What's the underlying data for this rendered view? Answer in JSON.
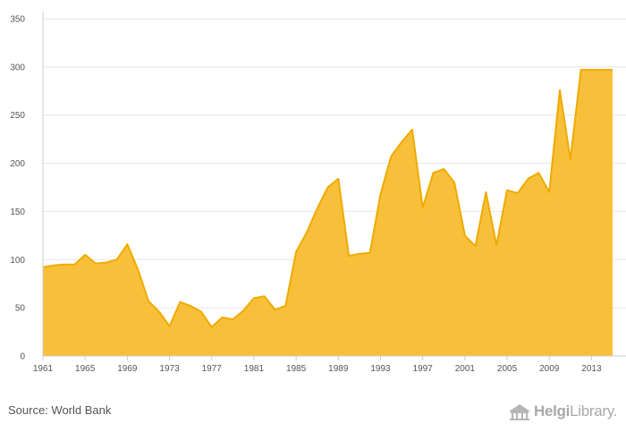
{
  "chart_data": {
    "type": "area",
    "title": "",
    "xlabel": "",
    "ylabel": "",
    "x": [
      1961,
      1962,
      1963,
      1964,
      1965,
      1966,
      1967,
      1968,
      1969,
      1970,
      1971,
      1972,
      1973,
      1974,
      1975,
      1976,
      1977,
      1978,
      1979,
      1980,
      1981,
      1982,
      1983,
      1984,
      1985,
      1986,
      1987,
      1988,
      1989,
      1990,
      1991,
      1992,
      1993,
      1994,
      1995,
      1996,
      1997,
      1998,
      1999,
      2000,
      2001,
      2002,
      2003,
      2004,
      2005,
      2006,
      2007,
      2008,
      2009,
      2010,
      2011,
      2012,
      2013,
      2014,
      2015
    ],
    "values": [
      92,
      94,
      95,
      95,
      105,
      96,
      97,
      100,
      116,
      90,
      57,
      46,
      31,
      56,
      52,
      46,
      30,
      40,
      38,
      47,
      60,
      62,
      48,
      52,
      108,
      128,
      153,
      175,
      184,
      104,
      106,
      107,
      168,
      207,
      222,
      235,
      154,
      190,
      194,
      180,
      125,
      114,
      170,
      115,
      172,
      169,
      184,
      190,
      170,
      276,
      204,
      297,
      297,
      297,
      297
    ],
    "xlim": [
      1961,
      2015
    ],
    "ylim": [
      0,
      350
    ],
    "x_ticks": [
      "1961",
      "1965",
      "1969",
      "1973",
      "1977",
      "1981",
      "1985",
      "1989",
      "1993",
      "1997",
      "2001",
      "2005",
      "2009",
      "2013"
    ],
    "y_ticks": [
      "0",
      "50",
      "100",
      "150",
      "200",
      "250",
      "300",
      "350"
    ],
    "grid": true,
    "fill_color": "#F8C03A",
    "line_color": "#F0AA00",
    "axis_color": "#cccccc",
    "grid_color": "#e6e6e6"
  },
  "footer": {
    "source": "Source: World Bank",
    "logo_bold": "Helgi",
    "logo_light": "Library."
  }
}
